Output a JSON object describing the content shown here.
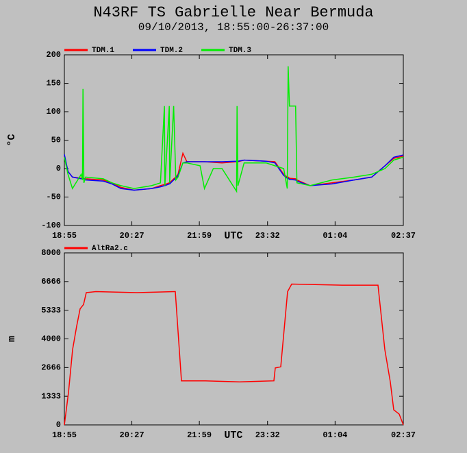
{
  "title": "N43RF TS Gabrielle Near Bermuda",
  "subtitle": "09/10/2013, 18:55:00-26:37:00",
  "chart_data": [
    {
      "type": "line",
      "ylabel": "°C",
      "xlabel": "UTC",
      "x": [
        18.917,
        19.0,
        19.1,
        19.3,
        19.33,
        19.34,
        19.36,
        19.4,
        19.8,
        20.0,
        20.2,
        20.5,
        20.9,
        21.1,
        21.19,
        21.2,
        21.3,
        21.31,
        21.4,
        21.45,
        21.5,
        21.61,
        21.7,
        22.0,
        22.1,
        22.3,
        22.5,
        22.83,
        22.84,
        22.86,
        23.0,
        23.5,
        23.7,
        23.9,
        23.98,
        24.0,
        24.03,
        24.17,
        24.2,
        24.5,
        25.0,
        25.5,
        25.9,
        26.2,
        26.4,
        26.617
      ],
      "series": [
        {
          "name": "TDM.1",
          "color": "#ff0000",
          "values": [
            22,
            -5,
            -15,
            -17,
            -17,
            -17,
            -17,
            -18,
            -20,
            -25,
            -33,
            -38,
            -35,
            -30,
            -28,
            -28,
            -25,
            -25,
            -18,
            -15,
            -10,
            27,
            12,
            12,
            12,
            11,
            10,
            12,
            12,
            12,
            15,
            13,
            12,
            -10,
            -15,
            -15,
            -17,
            -18,
            -20,
            -30,
            -25,
            -20,
            -15,
            5,
            18,
            22
          ]
        },
        {
          "name": "TDM.2",
          "color": "#0000ff",
          "values": [
            25,
            -5,
            -15,
            -18,
            -18,
            -18,
            -18,
            -20,
            -22,
            -27,
            -35,
            -38,
            -35,
            -32,
            -30,
            -30,
            -27,
            -27,
            -20,
            -17,
            -12,
            10,
            12,
            12,
            12,
            12,
            12,
            13,
            13,
            13,
            15,
            13,
            10,
            -12,
            -17,
            -17,
            -19,
            -20,
            -22,
            -30,
            -27,
            -20,
            -15,
            5,
            20,
            24
          ]
        },
        {
          "name": "TDM.3",
          "color": "#00ee00",
          "values": [
            20,
            -10,
            -35,
            -10,
            -20,
            140,
            -25,
            -15,
            -18,
            -25,
            -30,
            -35,
            -30,
            -25,
            110,
            -30,
            110,
            -25,
            110,
            -20,
            -15,
            10,
            10,
            5,
            -35,
            0,
            0,
            -40,
            110,
            -30,
            10,
            10,
            5,
            0,
            -35,
            180,
            110,
            110,
            -25,
            -30,
            -20,
            -15,
            -10,
            0,
            15,
            20
          ]
        }
      ],
      "xlim": [
        18.917,
        26.617
      ],
      "xticks": [
        {
          "value": 18.917,
          "label": "18:55"
        },
        {
          "value": 20.45,
          "label": "20:27"
        },
        {
          "value": 21.983,
          "label": "21:59"
        },
        {
          "value": 23.533,
          "label": "23:32"
        },
        {
          "value": 25.067,
          "label": "01:04"
        },
        {
          "value": 26.617,
          "label": "02:37"
        }
      ],
      "ylim": [
        -100,
        200
      ],
      "yticks": [
        -100,
        -50,
        0,
        50,
        100,
        150,
        200
      ]
    },
    {
      "type": "line",
      "ylabel": "m",
      "xlabel": "UTC",
      "x": [
        18.917,
        19.01,
        19.104,
        19.197,
        19.275,
        19.353,
        19.415,
        19.632,
        20.566,
        21.437,
        21.577,
        22.121,
        22.899,
        23.677,
        23.708,
        23.832,
        23.988,
        24.081,
        25.232,
        26.041,
        26.197,
        26.321,
        26.399,
        26.523,
        26.617
      ],
      "series": [
        {
          "name": "AltRa2.c",
          "color": "#ff0000",
          "values": [
            0,
            1500,
            3500,
            4600,
            5400,
            5600,
            6150,
            6200,
            6150,
            6200,
            2050,
            2050,
            2000,
            2050,
            2650,
            2700,
            6200,
            6550,
            6500,
            6500,
            3500,
            2000,
            700,
            500,
            0
          ]
        }
      ],
      "xlim": [
        18.917,
        26.617
      ],
      "xticks": [
        {
          "value": 18.917,
          "label": "18:55"
        },
        {
          "value": 20.45,
          "label": "20:27"
        },
        {
          "value": 21.983,
          "label": "21:59"
        },
        {
          "value": 23.533,
          "label": "23:32"
        },
        {
          "value": 25.067,
          "label": "01:04"
        },
        {
          "value": 26.617,
          "label": "02:37"
        }
      ],
      "ylim": [
        0,
        8000
      ],
      "yticks": [
        0,
        1333,
        2666,
        4000,
        5333,
        6666,
        8000
      ]
    }
  ]
}
